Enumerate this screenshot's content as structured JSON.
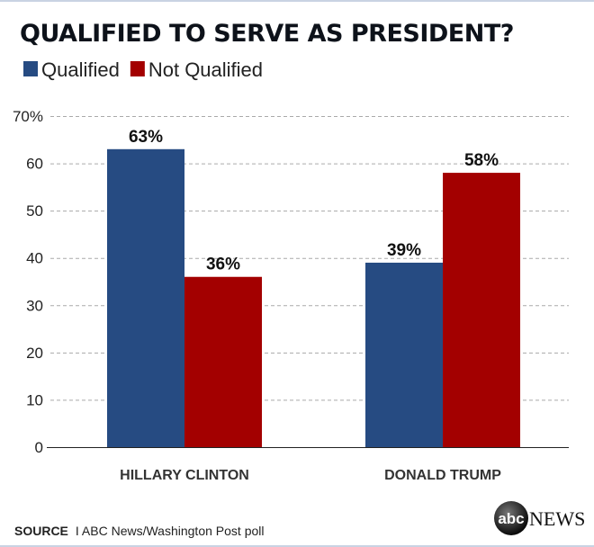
{
  "chart_data": {
    "type": "bar",
    "title": "QUALIFIED TO SERVE AS PRESIDENT?",
    "categories": [
      "HILLARY CLINTON",
      "DONALD TRUMP"
    ],
    "series": [
      {
        "name": "Qualified",
        "values": [
          63,
          39
        ],
        "color": "#264b82",
        "labels": [
          "63%",
          "39%"
        ]
      },
      {
        "name": "Not Qualified",
        "values": [
          36,
          58
        ],
        "color": "#a30000",
        "labels": [
          "36%",
          "58%"
        ]
      }
    ],
    "yticks": [
      "0",
      "10",
      "20",
      "30",
      "40",
      "50",
      "60",
      "70%"
    ],
    "ylim": [
      0,
      70
    ],
    "grid": true,
    "legend": "top-left"
  },
  "footer": {
    "source_label": "SOURCE",
    "source_text": "I  ABC News/Washington Post poll",
    "logo_text": "abc NEWS"
  }
}
